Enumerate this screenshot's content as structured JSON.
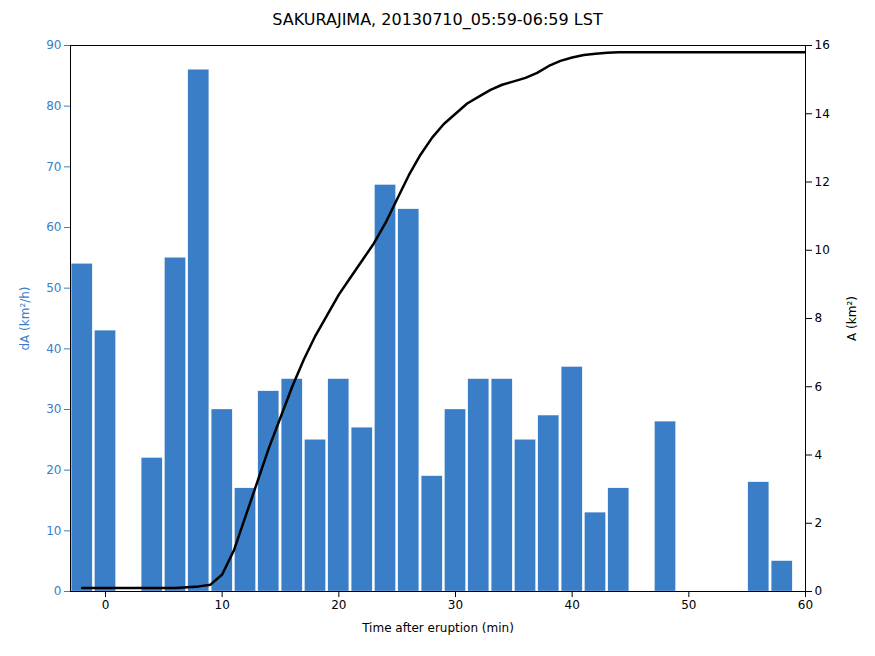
{
  "chart_data": {
    "type": "bar",
    "title": "SAKURAJIMA, 20130710_05:59-06:59 LST",
    "xlabel": "Time after eruption (min)",
    "ylabel": "dA (km²/h)",
    "y2label": "A (km²)",
    "xlim": [
      -3,
      60
    ],
    "xticks": [
      0,
      10,
      20,
      30,
      40,
      50,
      60
    ],
    "ylim": [
      0,
      90
    ],
    "yticks": [
      0,
      10,
      20,
      30,
      40,
      50,
      60,
      70,
      80,
      90
    ],
    "y2lim": [
      0,
      16
    ],
    "y2ticks": [
      0,
      2,
      4,
      6,
      8,
      10,
      12,
      14,
      16
    ],
    "grid": false,
    "series": [
      {
        "type": "bar",
        "color": "#3A7EC8",
        "x": [
          -2,
          0,
          2,
          4,
          6,
          8,
          10,
          12,
          14,
          16,
          18,
          20,
          22,
          24,
          26,
          28,
          30,
          32,
          34,
          36,
          38,
          40,
          42,
          44,
          48,
          56,
          58
        ],
        "values": [
          54,
          43,
          0,
          22,
          55,
          86,
          30,
          17,
          33,
          35,
          25,
          35,
          27,
          67,
          63,
          19,
          30,
          35,
          35,
          25,
          29,
          37,
          13,
          17,
          28,
          18,
          5
        ]
      },
      {
        "type": "line",
        "axis": "y2",
        "color": "#000000",
        "x": [
          -2,
          0,
          2,
          4,
          6,
          8,
          9,
          10,
          11,
          12,
          13,
          14,
          15,
          16,
          17,
          18,
          19,
          20,
          21,
          22,
          23,
          24,
          25,
          26,
          27,
          28,
          29,
          30,
          31,
          32,
          33,
          34,
          35,
          36,
          37,
          38,
          39,
          40,
          41,
          42,
          43,
          44,
          46,
          48,
          50,
          52,
          54,
          56,
          58,
          60
        ],
        "values": [
          0.1,
          0.1,
          0.1,
          0.1,
          0.1,
          0.15,
          0.2,
          0.5,
          1.2,
          2.2,
          3.2,
          4.2,
          5.1,
          6.0,
          6.8,
          7.5,
          8.1,
          8.7,
          9.2,
          9.7,
          10.2,
          10.8,
          11.5,
          12.2,
          12.8,
          13.3,
          13.7,
          14.0,
          14.3,
          14.5,
          14.7,
          14.85,
          14.95,
          15.05,
          15.2,
          15.4,
          15.55,
          15.65,
          15.72,
          15.76,
          15.79,
          15.8,
          15.8,
          15.8,
          15.8,
          15.8,
          15.8,
          15.8,
          15.8,
          15.8
        ]
      }
    ]
  }
}
